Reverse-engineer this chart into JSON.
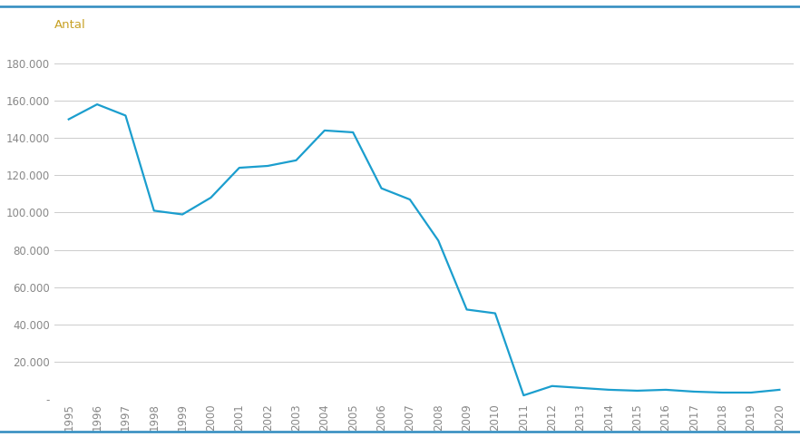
{
  "years": [
    1995,
    1996,
    1997,
    1998,
    1999,
    2000,
    2001,
    2002,
    2003,
    2004,
    2005,
    2006,
    2007,
    2008,
    2009,
    2010,
    2011,
    2012,
    2013,
    2014,
    2015,
    2016,
    2017,
    2018,
    2019,
    2020
  ],
  "values": [
    150000,
    158000,
    152000,
    101000,
    99000,
    108000,
    124000,
    125000,
    128000,
    144000,
    143000,
    113000,
    107000,
    85000,
    48000,
    46000,
    2000,
    7000,
    6000,
    5000,
    4500,
    5000,
    4000,
    3500,
    3500,
    5000
  ],
  "line_color": "#1b9ece",
  "ylabel": "Antal",
  "ylabel_color": "#c8a227",
  "background_color": "#ffffff",
  "grid_color": "#cccccc",
  "axis_color": "#aaaaaa",
  "tick_label_color": "#888888",
  "ylim": [
    0,
    190000
  ],
  "yticks": [
    0,
    20000,
    40000,
    60000,
    80000,
    100000,
    120000,
    140000,
    160000,
    180000
  ],
  "ytick_labels": [
    "-",
    "20.000",
    "40.000",
    "60.000",
    "80.000",
    "100.000",
    "120.000",
    "140.000",
    "160.000",
    "180.000"
  ],
  "border_color": "#2e8bbf",
  "line_width": 1.6
}
